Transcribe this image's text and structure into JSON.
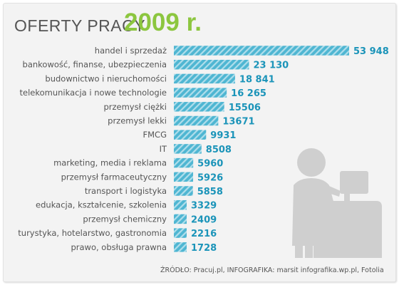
{
  "header": {
    "title_prefix": "OFERTY PRACY",
    "title_year": "2009 r."
  },
  "source_line": "ŹRÓDŁO: Pracuj.pl, INFOGRAFIKA: marsit infografika.wp.pl, Fotolia",
  "colors": {
    "bar": "#4fb6d2",
    "year": "#8cc63f",
    "text": "#555555",
    "value": "#1b94b9",
    "figure": "#cfcfcf"
  },
  "illustration": {
    "icon": "person-at-cash-register-icon"
  },
  "chart_data": {
    "type": "bar",
    "orientation": "horizontal",
    "title": "OFERTY PRACY 2009 r.",
    "categories": [
      "handel i sprzedaż",
      "bankowość, finanse, ubezpieczenia",
      "budownictwo i nieruchomości",
      "telekomunikacja i nowe technologie",
      "przemysł ciężki",
      "przemysł lekki",
      "FMCG",
      "IT",
      "marketing, media i reklama",
      "przemysł farmaceutyczny",
      "transport i logistyka",
      "edukacja, kształcenie, szkolenia",
      "przemysł chemiczny",
      "turystyka, hotelarstwo, gastronomia",
      "prawo, obsługa prawna"
    ],
    "values": [
      53948,
      23130,
      18841,
      16265,
      15506,
      13671,
      9931,
      8508,
      5960,
      5926,
      5858,
      3329,
      2409,
      2216,
      1728
    ],
    "value_labels": [
      "53 948",
      "23 130",
      "18 841",
      "16 265",
      "15506",
      "13671",
      "9931",
      "8508",
      "5960",
      "5926",
      "5858",
      "3329",
      "2409",
      "2216",
      "1728"
    ],
    "xlabel": "",
    "ylabel": "",
    "grid": false,
    "legend": "none"
  }
}
